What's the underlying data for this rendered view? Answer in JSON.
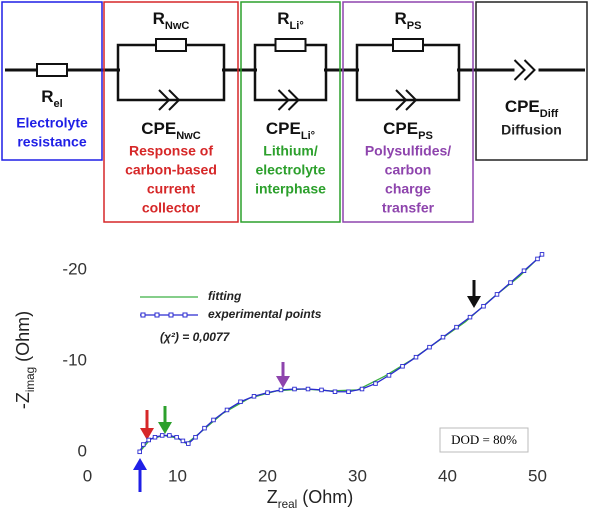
{
  "circuit": {
    "blocks": [
      {
        "color": "#1f1fe6",
        "r": {
          "main": "R",
          "sub": "el"
        },
        "description": [
          "Electrolyte",
          "resistance"
        ]
      },
      {
        "color": "#d62728",
        "r": {
          "main": "R",
          "sub": "NwC"
        },
        "cpe": {
          "main": "CPE",
          "sub": "NwC"
        },
        "description": [
          "Response of",
          "carbon-based",
          "current",
          "collector"
        ]
      },
      {
        "color": "#2ca02c",
        "r": {
          "main": "R",
          "sub": "Li°"
        },
        "cpe": {
          "main": "CPE",
          "sub": "Li°"
        },
        "description": [
          "Lithium/",
          "electrolyte",
          "interphase"
        ]
      },
      {
        "color": "#8e44ad",
        "r": {
          "main": "R",
          "sub": "PS"
        },
        "cpe": {
          "main": "CPE",
          "sub": "PS"
        },
        "description": [
          "Polysulfides/",
          "carbon",
          "charge",
          "transfer"
        ]
      },
      {
        "color": "#222222",
        "cpe": {
          "main": "CPE",
          "sub": "Diff"
        },
        "description": [
          "Diffusion"
        ]
      }
    ]
  },
  "chart_data": {
    "type": "line",
    "x_label": {
      "main": "Z",
      "sub": "real",
      "unit": "(Ohm)"
    },
    "y_label": {
      "main": "-Z",
      "sub": "imag",
      "unit": "(Ohm)"
    },
    "xlim": [
      -2.5,
      52.5
    ],
    "ylim": [
      2,
      -22.4
    ],
    "xticks": [
      0,
      10,
      20,
      30,
      40,
      50
    ],
    "yticks": [
      -20,
      -10,
      0
    ],
    "series": [
      {
        "name": "fitting",
        "color": "#3cb043",
        "x": [
          5.8,
          7,
          8.5,
          10,
          11,
          12.5,
          15,
          18,
          21,
          24,
          27,
          30,
          33,
          36,
          39,
          42,
          45,
          48,
          50.5
        ],
        "values": [
          0,
          -1.4,
          -1.8,
          -1.5,
          -0.9,
          -2.1,
          -4.2,
          -5.9,
          -6.7,
          -6.9,
          -6.7,
          -6.8,
          -8.3,
          -10.1,
          -12.2,
          -14.3,
          -16.9,
          -19.3,
          -21.7
        ]
      },
      {
        "name": "experimental points",
        "color": "#2a2ad0",
        "marker": "square",
        "x": [
          5.8,
          6.2,
          6.8,
          7.5,
          8.3,
          9.1,
          9.9,
          10.6,
          11.2,
          12,
          13,
          14,
          15.5,
          17,
          18.5,
          20,
          21.5,
          23,
          24.5,
          26,
          27.5,
          29,
          30.5,
          32,
          33.5,
          35,
          36.5,
          38,
          39.5,
          41,
          42.5,
          44,
          45.5,
          47,
          48.5,
          50,
          50.5
        ],
        "values": [
          0,
          -0.8,
          -1.3,
          -1.6,
          -1.8,
          -1.8,
          -1.6,
          -1.2,
          -0.9,
          -1.6,
          -2.6,
          -3.5,
          -4.6,
          -5.5,
          -6.1,
          -6.5,
          -6.8,
          -6.9,
          -6.9,
          -6.8,
          -6.6,
          -6.6,
          -6.9,
          -7.5,
          -8.4,
          -9.4,
          -10.4,
          -11.5,
          -12.6,
          -13.7,
          -14.8,
          -16.0,
          -17.3,
          -18.6,
          -19.9,
          -21.2,
          -21.7
        ]
      }
    ],
    "annotations": [
      "(χ²) = 0,0077",
      "DOD = 80%"
    ]
  }
}
